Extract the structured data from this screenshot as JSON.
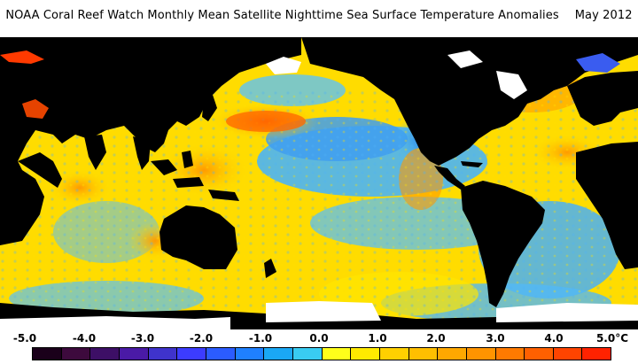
{
  "header": {
    "title": "NOAA Coral Reef Watch Monthly Mean Satellite Nighttime Sea Surface Temperature Anomalies",
    "date": "May 2012"
  },
  "map": {
    "ocean_anomaly_colors": {
      "strong_cool": "#1e5cf0",
      "cool": "#2f9bf5",
      "light_cool": "#6ec6f5",
      "near_zero": "#fff500",
      "warm": "#ffd200",
      "warmer": "#ffab00",
      "hot": "#ff6a00",
      "very_hot": "#e82d00"
    },
    "land_color": "#000000",
    "ice_color": "#ffffff"
  },
  "colorbar": {
    "tick_labels": [
      "-5.0",
      "-4.0",
      "-3.0",
      "-2.0",
      "-1.0",
      "0.0",
      "1.0",
      "2.0",
      "3.0",
      "4.0",
      "5.0"
    ],
    "unit": "°C",
    "colors": [
      "#1a001a",
      "#3d0a3d",
      "#3d0f66",
      "#4a1aa6",
      "#3f33cc",
      "#3c3cff",
      "#2b5cff",
      "#1f80ff",
      "#1aa8f5",
      "#39ccf2",
      "#ffff1a",
      "#ffea00",
      "#ffd000",
      "#ffbf00",
      "#ffa800",
      "#ff9400",
      "#ff7a00",
      "#ff6000",
      "#ff4400",
      "#ff2200"
    ]
  }
}
